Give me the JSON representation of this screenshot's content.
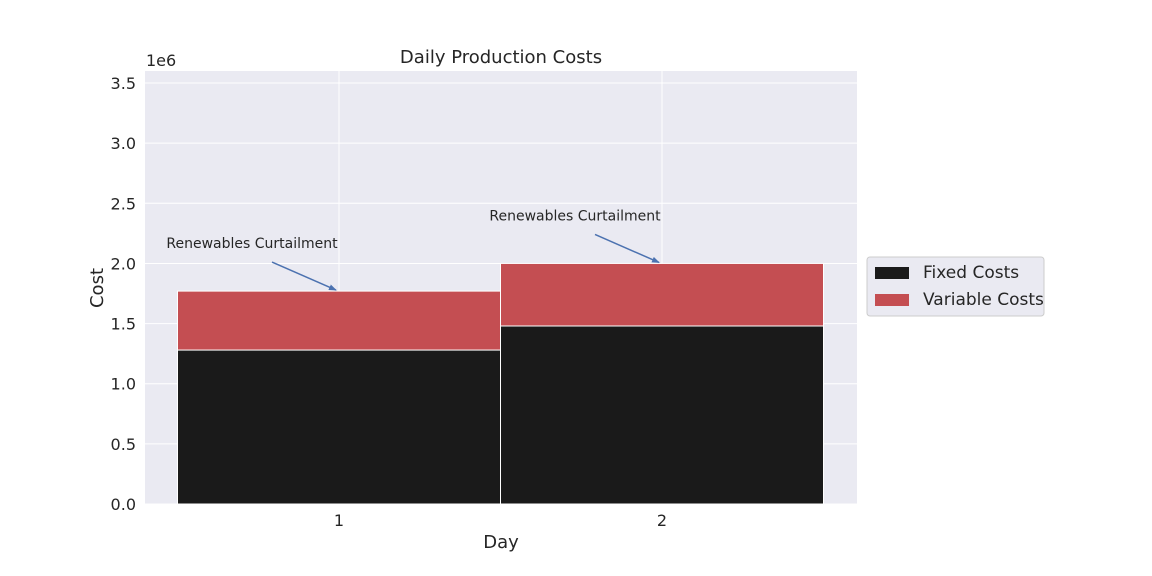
{
  "chart_data": {
    "type": "bar",
    "stacked": true,
    "title": "Daily Production Costs",
    "xlabel": "Day",
    "ylabel": "Cost",
    "y_scale_label": "1e6",
    "categories": [
      "1",
      "2"
    ],
    "series": [
      {
        "name": "Fixed Costs",
        "color": "#1a1a1a",
        "values": [
          1280000,
          1480000
        ]
      },
      {
        "name": "Variable Costs",
        "color": "#c44e52",
        "values": [
          490000,
          520000
        ]
      }
    ],
    "ylim": [
      0,
      3600000
    ],
    "yticks": [
      0,
      500000,
      1000000,
      1500000,
      2000000,
      2500000,
      3000000,
      3500000
    ],
    "ytick_labels": [
      "0.0",
      "0.5",
      "1.0",
      "1.5",
      "2.0",
      "2.5",
      "3.0",
      "3.5"
    ],
    "grid": true,
    "legend_position": "outside-right",
    "annotations": [
      {
        "text": "Renewables Curtailment",
        "category": "1",
        "y": 1770000
      },
      {
        "text": "Renewables Curtailment",
        "category": "2",
        "y": 2000000
      }
    ],
    "colors": {
      "plot_background": "#eaeaf2",
      "grid": "#ffffff",
      "arrow": "#4c72b0"
    }
  }
}
